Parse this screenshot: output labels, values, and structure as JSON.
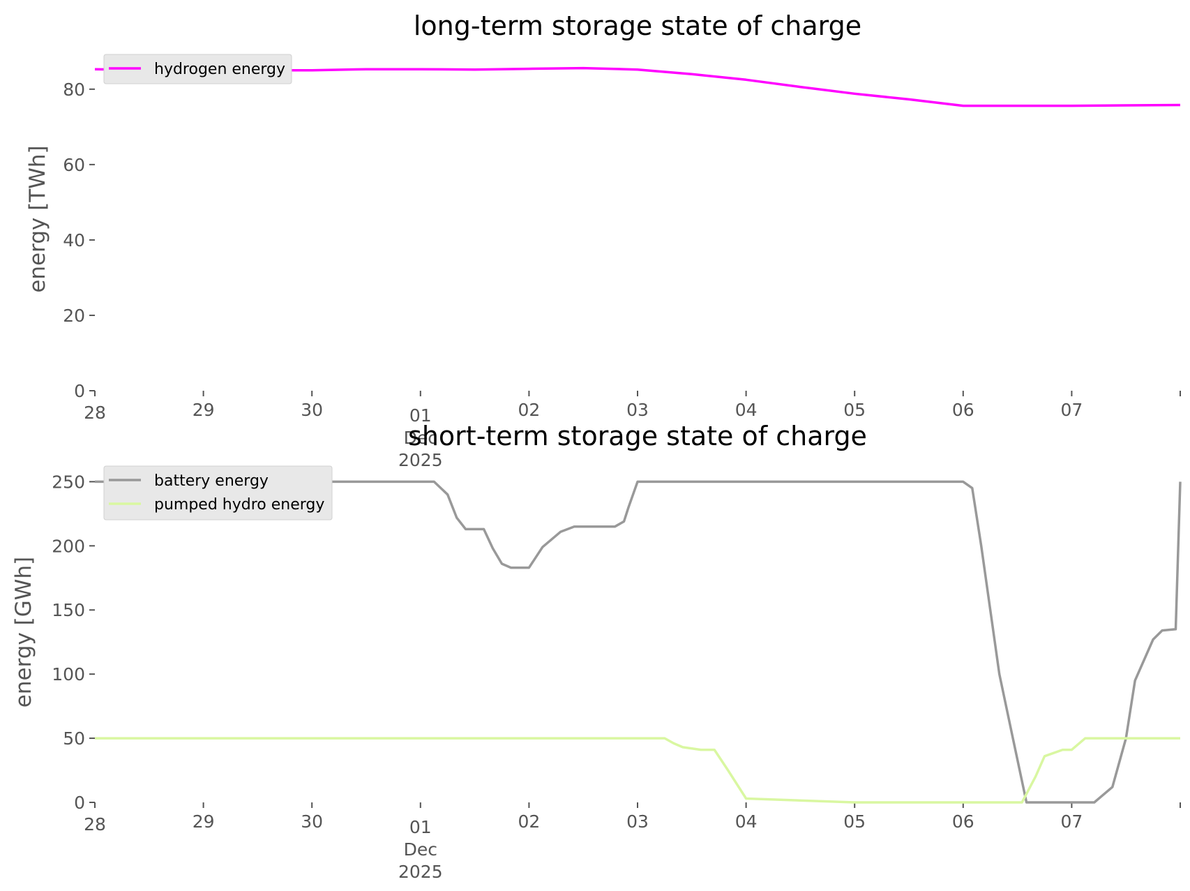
{
  "chart_data": [
    {
      "type": "line",
      "title": "long-term storage state of charge",
      "ylabel": "energy [TWh]",
      "xlabel": "",
      "xlim": [
        "2025-11-28",
        "2025-12-08"
      ],
      "ylim": [
        0,
        87
      ],
      "yticks": [
        0,
        20,
        40,
        60,
        80
      ],
      "xtick_labels": [
        "28",
        "29",
        "30",
        "01\nDec\n2025",
        "02",
        "03",
        "04",
        "05",
        "06",
        "07"
      ],
      "grid": false,
      "legend": "upper left",
      "series": [
        {
          "name": "hydrogen energy",
          "color": "#ff00ff",
          "x": [
            "2025-11-28T00:00",
            "2025-11-28T12:00",
            "2025-11-29T00:00",
            "2025-11-30T00:00",
            "2025-11-30T12:00",
            "2025-12-01T00:00",
            "2025-12-01T12:00",
            "2025-12-02T00:00",
            "2025-12-02T12:00",
            "2025-12-03T00:00",
            "2025-12-03T12:00",
            "2025-12-04T00:00",
            "2025-12-04T12:00",
            "2025-12-05T00:00",
            "2025-12-05T12:00",
            "2025-12-06T00:00",
            "2025-12-06T12:00",
            "2025-12-07T00:00",
            "2025-12-07T12:00",
            "2025-12-08T00:00"
          ],
          "y": [
            85.3,
            85.1,
            85.0,
            85.0,
            85.3,
            85.3,
            85.2,
            85.4,
            85.6,
            85.2,
            84.0,
            82.5,
            80.6,
            78.8,
            77.3,
            75.6,
            75.6,
            75.6,
            75.7,
            75.8
          ]
        }
      ]
    },
    {
      "type": "line",
      "title": "short-term storage state of charge",
      "ylabel": "energy [GWh]",
      "xlabel": "",
      "xlim": [
        "2025-11-28",
        "2025-12-08"
      ],
      "ylim": [
        0,
        260
      ],
      "yticks": [
        0,
        50,
        100,
        150,
        200,
        250
      ],
      "xtick_labels": [
        "28",
        "29",
        "30",
        "01\nDec\n2025",
        "02",
        "03",
        "04",
        "05",
        "06",
        "07"
      ],
      "grid": false,
      "legend": "upper left",
      "series": [
        {
          "name": "battery energy",
          "color": "#999999",
          "x": [
            "2025-11-28T00:00",
            "2025-12-01T00:00",
            "2025-12-01T03:00",
            "2025-12-01T06:00",
            "2025-12-01T08:00",
            "2025-12-01T10:00",
            "2025-12-01T14:00",
            "2025-12-01T16:00",
            "2025-12-01T18:00",
            "2025-12-01T20:00",
            "2025-12-02T00:00",
            "2025-12-02T03:00",
            "2025-12-02T07:00",
            "2025-12-02T10:00",
            "2025-12-02T13:00",
            "2025-12-02T19:00",
            "2025-12-02T21:00",
            "2025-12-02T22:00",
            "2025-12-03T00:00",
            "2025-12-03T04:00",
            "2025-12-03T08:00",
            "2025-12-05T00:00",
            "2025-12-06T00:00",
            "2025-12-06T02:00",
            "2025-12-06T04:00",
            "2025-12-06T06:00",
            "2025-12-06T08:00",
            "2025-12-06T11:00",
            "2025-12-06T14:00",
            "2025-12-06T17:00",
            "2025-12-06T19:00",
            "2025-12-06T21:00",
            "2025-12-06T23:00",
            "2025-12-07T01:00",
            "2025-12-07T03:00",
            "2025-12-07T05:00",
            "2025-12-07T09:00",
            "2025-12-07T12:00",
            "2025-12-07T14:00",
            "2025-12-07T18:00",
            "2025-12-07T20:00",
            "2025-12-07T23:00",
            "2025-12-08T00:00"
          ],
          "y": [
            250,
            250,
            250,
            240,
            222,
            213,
            213,
            198,
            186,
            183,
            183,
            199,
            211,
            215,
            215,
            215,
            219,
            230,
            250,
            250,
            250,
            250,
            250,
            245,
            200,
            150,
            100,
            50,
            0,
            0,
            0,
            0,
            0,
            0,
            0,
            0,
            12,
            50,
            95,
            127,
            134,
            135,
            250
          ]
        },
        {
          "name": "pumped hydro energy",
          "color": "#d9f7a1",
          "x": [
            "2025-11-28T00:00",
            "2025-12-03T00:00",
            "2025-12-03T06:00",
            "2025-12-03T08:00",
            "2025-12-03T10:00",
            "2025-12-03T14:00",
            "2025-12-03T17:00",
            "2025-12-03T20:00",
            "2025-12-04T00:00",
            "2025-12-05T00:00",
            "2025-12-06T00:00",
            "2025-12-06T10:00",
            "2025-12-06T13:00",
            "2025-12-06T16:00",
            "2025-12-06T18:00",
            "2025-12-06T22:00",
            "2025-12-07T00:00",
            "2025-12-07T03:00",
            "2025-12-07T05:00",
            "2025-12-08T00:00"
          ],
          "y": [
            50,
            50,
            50,
            46,
            43,
            41,
            41,
            25,
            3,
            0,
            0,
            0,
            0,
            20,
            36,
            41,
            41,
            50,
            50,
            50
          ]
        }
      ]
    }
  ]
}
